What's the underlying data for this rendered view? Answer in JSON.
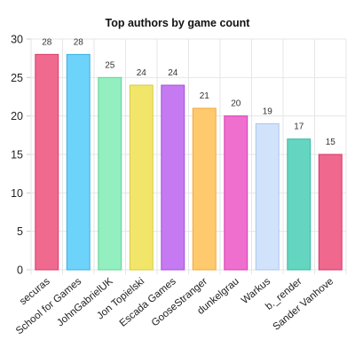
{
  "chart_data": {
    "type": "bar",
    "title": "Top authors by game count",
    "xlabel": "",
    "ylabel": "",
    "ylim": [
      0,
      30
    ],
    "yticks": [
      0,
      5,
      10,
      15,
      20,
      25,
      30
    ],
    "grid": true,
    "legend": "none",
    "categories": [
      "securas",
      "School for Games",
      "JohnGabrielUK",
      "Jon Topielski",
      "Escada Games",
      "GooseStranger",
      "dunkelgrau",
      "Warkus",
      "b._render",
      "Sander Vanhove"
    ],
    "values": [
      28,
      28,
      25,
      24,
      24,
      21,
      20,
      19,
      17,
      15
    ],
    "colors": [
      {
        "fill": "#f06a8f",
        "stroke": "#d93b68"
      },
      {
        "fill": "#6dd3fb",
        "stroke": "#3aaee0"
      },
      {
        "fill": "#93efbf",
        "stroke": "#5fd596"
      },
      {
        "fill": "#f2e66a",
        "stroke": "#d8c93a"
      },
      {
        "fill": "#c57af2",
        "stroke": "#a64fd9"
      },
      {
        "fill": "#ffc96e",
        "stroke": "#f0a83d"
      },
      {
        "fill": "#ef6fcf",
        "stroke": "#d83db3"
      },
      {
        "fill": "#d1e2fb",
        "stroke": "#a9c6ef"
      },
      {
        "fill": "#64d5c1",
        "stroke": "#35b9a1"
      },
      {
        "fill": "#f0688d",
        "stroke": "#d6336b"
      }
    ]
  }
}
